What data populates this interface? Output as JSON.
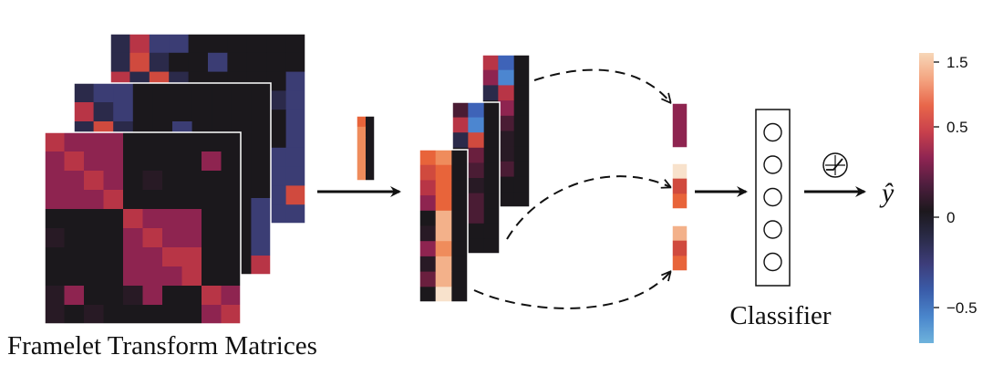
{
  "labels": {
    "framelet": "Framelet Transform Matrices",
    "classifier": "Classifier",
    "output": "ŷ"
  },
  "colorbar": {
    "ticks": [
      {
        "value": 1.5,
        "label": "1.5"
      },
      {
        "value": 0.5,
        "label": "0.5"
      },
      {
        "value": 0,
        "label": "0"
      },
      {
        "value": -0.5,
        "label": "−0.5"
      }
    ],
    "colors": [
      "#f7d7b8",
      "#f4a480",
      "#e8664a",
      "#c8404c",
      "#8e2452",
      "#4e1e3e",
      "#1c181d",
      "#2a2b48",
      "#3d3d7a",
      "#3a5ca9",
      "#4a86cc",
      "#6eb3dc"
    ]
  },
  "palette": {
    "black": "#1b181c",
    "dark": "#281a25",
    "maroon": "#4a1c34",
    "plum": "#6a1f3e",
    "crimson": "#8e2450",
    "red": "#b83546",
    "redorange": "#d04a3e",
    "orange": "#e8643a",
    "lightorange": "#ef8c5c",
    "peach": "#f3b18a",
    "cream": "#f8e2cc",
    "navy": "#2b2a4a",
    "indigo": "#3b3d74",
    "blue": "#3e63b8",
    "lightblue": "#4c86d0"
  },
  "icons": {
    "activation": "relu-activation-icon"
  },
  "classifier_nodes": 5
}
